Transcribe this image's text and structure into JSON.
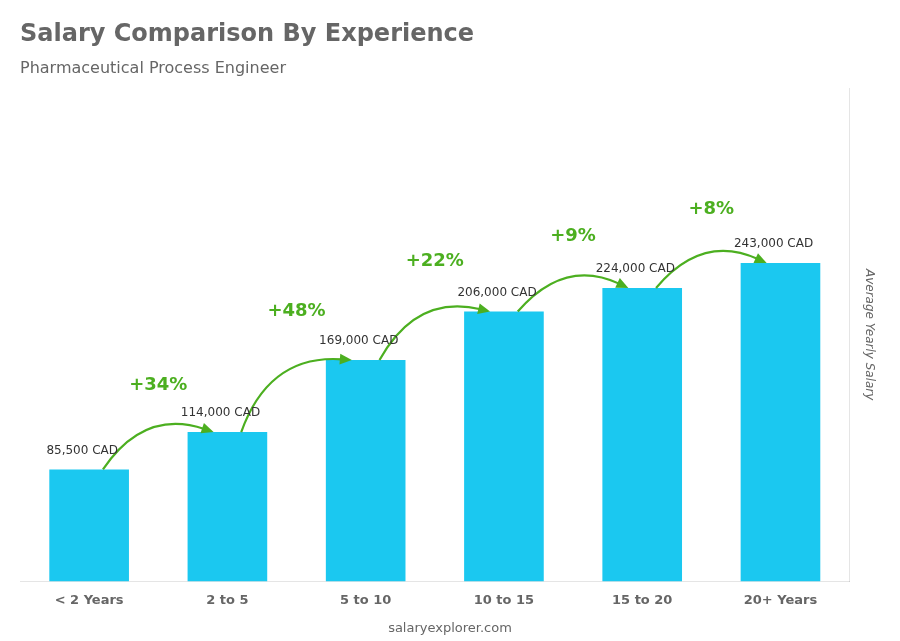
{
  "chart_data": {
    "type": "bar",
    "title": "Salary Comparison By Experience",
    "subtitle": "Pharmaceutical Process Engineer",
    "categories": [
      "< 2 Years",
      "2 to 5",
      "5 to 10",
      "10 to 15",
      "15 to 20",
      "20+ Years"
    ],
    "values": [
      85500,
      114000,
      169000,
      206000,
      224000,
      243000
    ],
    "value_labels": [
      "85,500 CAD",
      "114,000 CAD",
      "169,000 CAD",
      "206,000 CAD",
      "224,000 CAD",
      "243,000 CAD"
    ],
    "data_labels": true,
    "annotations": [
      "+34%",
      "+48%",
      "+22%",
      "+9%",
      "+8%"
    ],
    "watermark": "salaryexplorer.com",
    "ylabel": "Average Yearly Salary",
    "color": "#1BC8F0",
    "ylim": [
      0,
      376650
    ],
    "tick_labels": "x",
    "grid": false,
    "legend": false
  }
}
